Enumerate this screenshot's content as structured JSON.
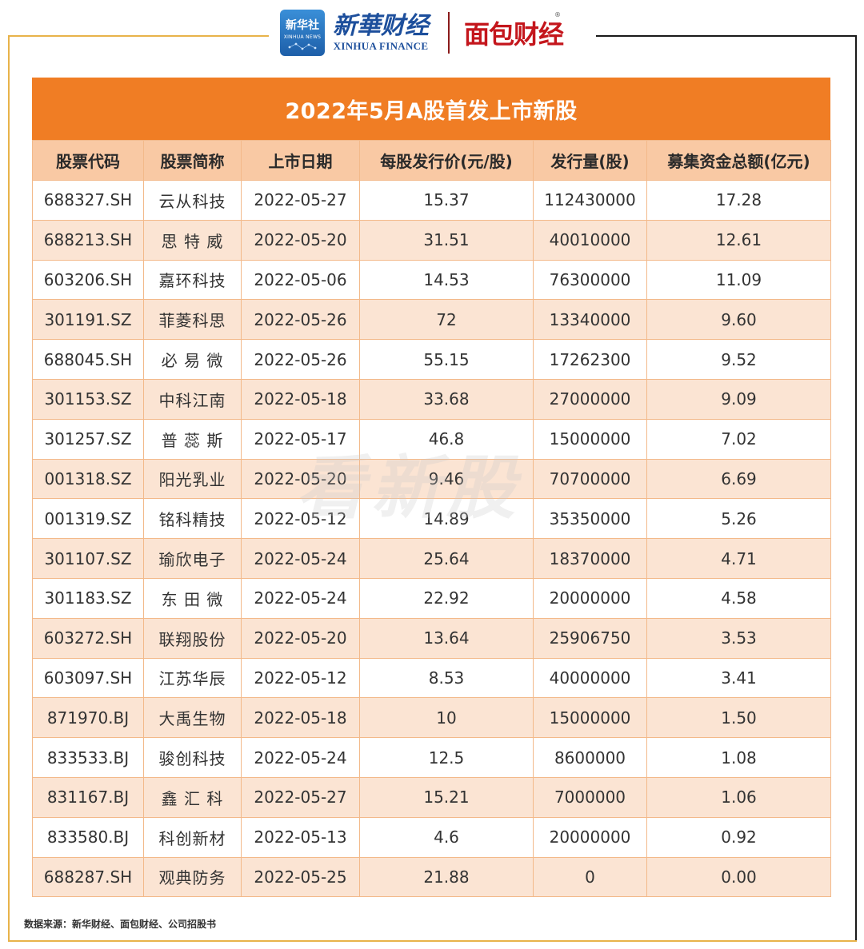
{
  "header": {
    "xinhua_badge_cn": "新华社",
    "xinhua_badge_en": "XINHUA NEWS",
    "xinhua_finance_cn": "新華财经",
    "xinhua_finance_en": "XINHUA FINANCE",
    "mianbao_cn": "面包财经",
    "mianbao_reg": "®"
  },
  "table": {
    "title": "2022年5月A股首发上市新股",
    "columns": [
      "股票代码",
      "股票简称",
      "上市日期",
      "每股发行价(元/股)",
      "发行量(股)",
      "募集资金总额(亿元)"
    ],
    "rows": [
      [
        "688327.SH",
        "云从科技",
        "2022-05-27",
        "15.37",
        "112430000",
        "17.28"
      ],
      [
        "688213.SH",
        "思 特 威",
        "2022-05-20",
        "31.51",
        "40010000",
        "12.61"
      ],
      [
        "603206.SH",
        "嘉环科技",
        "2022-05-06",
        "14.53",
        "76300000",
        "11.09"
      ],
      [
        "301191.SZ",
        "菲菱科思",
        "2022-05-26",
        "72",
        "13340000",
        "9.60"
      ],
      [
        "688045.SH",
        "必 易 微",
        "2022-05-26",
        "55.15",
        "17262300",
        "9.52"
      ],
      [
        "301153.SZ",
        "中科江南",
        "2022-05-18",
        "33.68",
        "27000000",
        "9.09"
      ],
      [
        "301257.SZ",
        "普 蕊 斯",
        "2022-05-17",
        "46.8",
        "15000000",
        "7.02"
      ],
      [
        "001318.SZ",
        "阳光乳业",
        "2022-05-20",
        "9.46",
        "70700000",
        "6.69"
      ],
      [
        "001319.SZ",
        "铭科精技",
        "2022-05-12",
        "14.89",
        "35350000",
        "5.26"
      ],
      [
        "301107.SZ",
        "瑜欣电子",
        "2022-05-24",
        "25.64",
        "18370000",
        "4.71"
      ],
      [
        "301183.SZ",
        "东 田 微",
        "2022-05-24",
        "22.92",
        "20000000",
        "4.58"
      ],
      [
        "603272.SH",
        "联翔股份",
        "2022-05-20",
        "13.64",
        "25906750",
        "3.53"
      ],
      [
        "603097.SH",
        "江苏华辰",
        "2022-05-12",
        "8.53",
        "40000000",
        "3.41"
      ],
      [
        "871970.BJ",
        "大禹生物",
        "2022-05-18",
        "10",
        "15000000",
        "1.50"
      ],
      [
        "833533.BJ",
        "骏创科技",
        "2022-05-24",
        "12.5",
        "8600000",
        "1.08"
      ],
      [
        "831167.BJ",
        "鑫 汇 科",
        "2022-05-27",
        "15.21",
        "7000000",
        "1.06"
      ],
      [
        "833580.BJ",
        "科创新材",
        "2022-05-13",
        "4.6",
        "20000000",
        "0.92"
      ],
      [
        "688287.SH",
        "观典防务",
        "2022-05-25",
        "21.88",
        "0",
        "0.00"
      ]
    ]
  },
  "watermark": "看新股",
  "source": "数据来源：新华财经、面包财经、公司招股书",
  "colors": {
    "title_bg": "#f07d24",
    "header_bg": "#f9c9a4",
    "row_alt_bg": "#fbe4d3",
    "border": "#f3b98a"
  }
}
